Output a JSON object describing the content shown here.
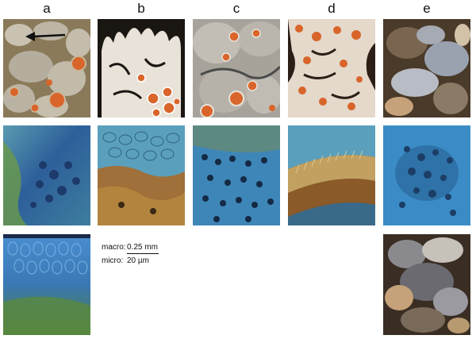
{
  "columns": [
    {
      "label": "a"
    },
    {
      "label": "b"
    },
    {
      "label": "c"
    },
    {
      "label": "d"
    },
    {
      "label": "e"
    }
  ],
  "scale": {
    "macro_label": "macro:",
    "macro_value": "0.25 mm",
    "micro_label": "micro:",
    "micro_value": "20 µm"
  },
  "colors": {
    "lichen_grey": "#b9b3a6",
    "apothecia_orange": "#d9652a",
    "micro_blue": "#3a86c8",
    "micro_green": "#6f8c3a",
    "micro_brown": "#7a4a1c"
  }
}
